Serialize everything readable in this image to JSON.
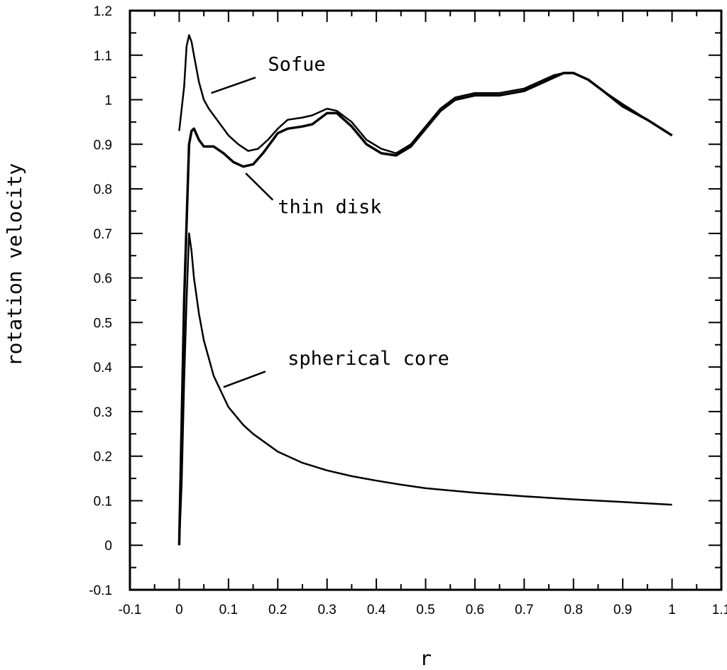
{
  "chart_data": {
    "type": "line",
    "title": "",
    "xlabel": "r",
    "ylabel": "rotation velocity",
    "xlim": [
      -0.1,
      1.1
    ],
    "ylim": [
      -0.1,
      1.2
    ],
    "grid": false,
    "x_ticks": [
      -0.1,
      0,
      0.1,
      0.2,
      0.3,
      0.4,
      0.5,
      0.6,
      0.7,
      0.8,
      0.9,
      1,
      1.1
    ],
    "x_tick_labels": [
      "-0.1",
      "0",
      "0.1",
      "0.2",
      "0.3",
      "0.4",
      "0.5",
      "0.6",
      "0.7",
      "0.8",
      "0.9",
      "1",
      "1.1"
    ],
    "y_ticks": [
      -0.1,
      0,
      0.1,
      0.2,
      0.3,
      0.4,
      0.5,
      0.6,
      0.7,
      0.8,
      0.9,
      1,
      1.1,
      1.2
    ],
    "y_tick_labels": [
      "-0.1",
      "0",
      "0.1",
      "0.2",
      "0.3",
      "0.4",
      "0.5",
      "0.6",
      "0.7",
      "0.8",
      "0.9",
      "1",
      "1.1",
      "1.2"
    ],
    "series": [
      {
        "name": "Sofue",
        "color": "#000000",
        "x": [
          0.0,
          0.01,
          0.015,
          0.02,
          0.025,
          0.03,
          0.04,
          0.05,
          0.06,
          0.08,
          0.1,
          0.12,
          0.14,
          0.16,
          0.18,
          0.2,
          0.22,
          0.25,
          0.27,
          0.3,
          0.32,
          0.35,
          0.38,
          0.41,
          0.44,
          0.47,
          0.5,
          0.53,
          0.56,
          0.6,
          0.65,
          0.7,
          0.73,
          0.76,
          0.78,
          0.8,
          0.83,
          0.86,
          0.9,
          0.95,
          1.0
        ],
        "y": [
          0.93,
          1.03,
          1.12,
          1.145,
          1.13,
          1.1,
          1.04,
          1.0,
          0.98,
          0.95,
          0.92,
          0.9,
          0.885,
          0.89,
          0.91,
          0.935,
          0.955,
          0.96,
          0.965,
          0.98,
          0.975,
          0.95,
          0.91,
          0.89,
          0.88,
          0.9,
          0.94,
          0.98,
          1.005,
          1.015,
          1.015,
          1.025,
          1.04,
          1.055,
          1.06,
          1.06,
          1.045,
          1.02,
          0.99,
          0.955,
          0.92
        ]
      },
      {
        "name": "thin disk",
        "color": "#000000",
        "x": [
          0.0,
          0.01,
          0.02,
          0.025,
          0.03,
          0.04,
          0.05,
          0.07,
          0.09,
          0.11,
          0.13,
          0.15,
          0.17,
          0.2,
          0.22,
          0.25,
          0.27,
          0.3,
          0.32,
          0.35,
          0.38,
          0.41,
          0.44,
          0.47,
          0.5,
          0.53,
          0.56,
          0.6,
          0.65,
          0.7,
          0.73,
          0.76,
          0.78,
          0.8,
          0.83,
          0.86,
          0.9,
          0.95,
          1.0
        ],
        "y": [
          0.0,
          0.55,
          0.9,
          0.93,
          0.935,
          0.91,
          0.895,
          0.895,
          0.88,
          0.86,
          0.85,
          0.855,
          0.88,
          0.925,
          0.935,
          0.94,
          0.945,
          0.97,
          0.97,
          0.94,
          0.9,
          0.88,
          0.875,
          0.895,
          0.935,
          0.975,
          1.0,
          1.01,
          1.01,
          1.02,
          1.035,
          1.05,
          1.06,
          1.06,
          1.045,
          1.02,
          0.985,
          0.955,
          0.92
        ]
      },
      {
        "name": "spherical core",
        "color": "#000000",
        "x": [
          0.0,
          0.005,
          0.01,
          0.015,
          0.02,
          0.025,
          0.03,
          0.04,
          0.05,
          0.07,
          0.1,
          0.13,
          0.15,
          0.2,
          0.25,
          0.3,
          0.35,
          0.4,
          0.45,
          0.5,
          0.6,
          0.7,
          0.8,
          0.9,
          1.0
        ],
        "y": [
          0.0,
          0.14,
          0.37,
          0.55,
          0.7,
          0.66,
          0.6,
          0.52,
          0.46,
          0.38,
          0.31,
          0.27,
          0.25,
          0.21,
          0.185,
          0.168,
          0.155,
          0.145,
          0.136,
          0.128,
          0.118,
          0.11,
          0.103,
          0.097,
          0.091
        ]
      }
    ],
    "annotations": [
      {
        "text": "Sofue",
        "x": 0.18,
        "y": 1.065
      },
      {
        "text": "thin disk",
        "x": 0.2,
        "y": 0.745
      },
      {
        "text": "spherical core",
        "x": 0.22,
        "y": 0.405
      }
    ]
  }
}
